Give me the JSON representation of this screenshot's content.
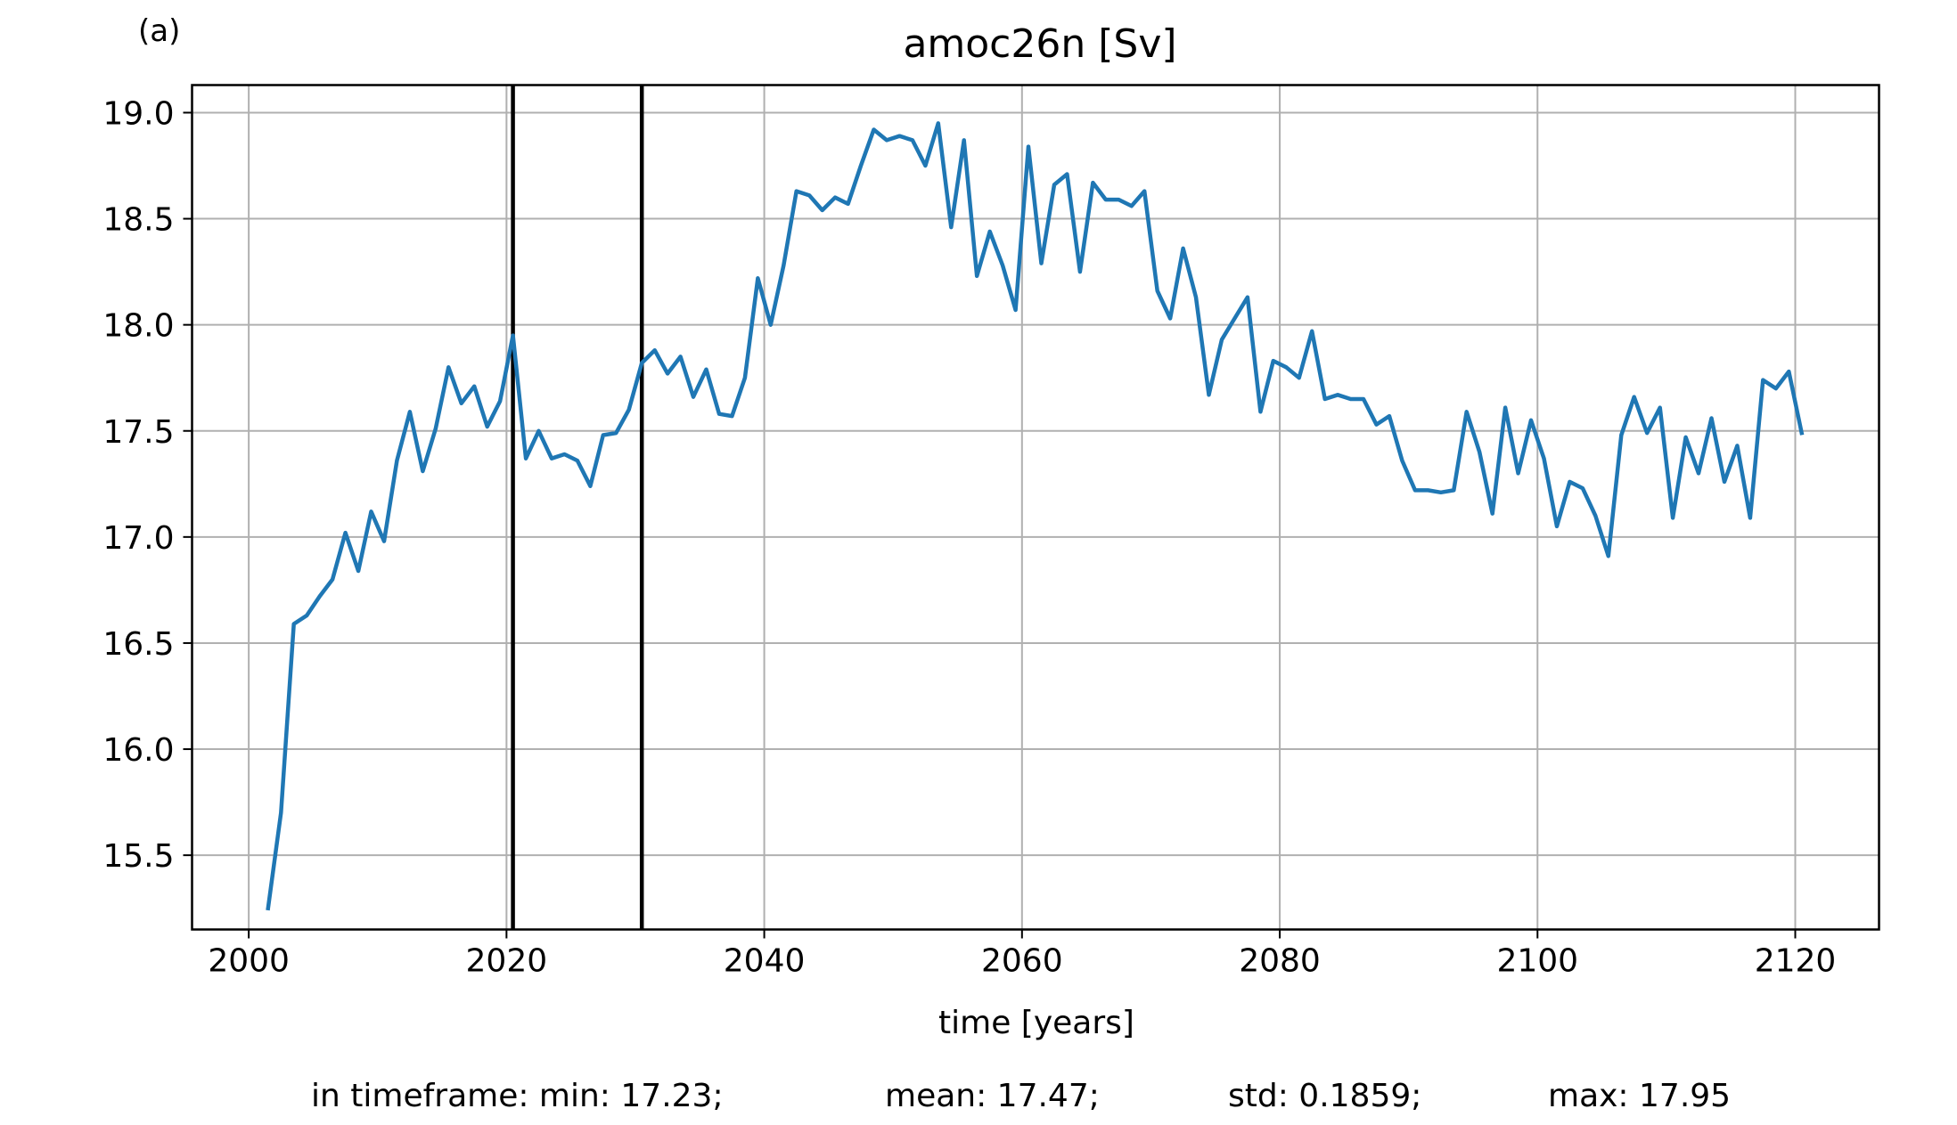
{
  "chart_data": {
    "type": "line",
    "panel_label": "(a)",
    "title": "amoc26n [Sv]",
    "xlabel": "time [years]",
    "ylabel": "",
    "xlim": [
      1995.6,
      2126.5
    ],
    "ylim": [
      15.15,
      19.13
    ],
    "xticks": [
      2000,
      2020,
      2040,
      2060,
      2080,
      2100,
      2120
    ],
    "xtick_labels": [
      "2000",
      "2020",
      "2040",
      "2060",
      "2080",
      "2100",
      "2120"
    ],
    "yticks": [
      15.5,
      16.0,
      16.5,
      17.0,
      17.5,
      18.0,
      18.5,
      19.0
    ],
    "ytick_labels": [
      "15.5",
      "16.0",
      "16.5",
      "17.0",
      "17.5",
      "18.0",
      "18.5",
      "19.0"
    ],
    "grid": true,
    "line_color": "#1f77b4",
    "vlines": [
      2020.5,
      2030.5
    ],
    "vline_color": "#000000",
    "series": [
      {
        "x": [
          2001.5,
          2002.5,
          2003.5,
          2004.5,
          2005.5,
          2006.5,
          2007.5,
          2008.5,
          2009.5,
          2010.5,
          2011.5,
          2012.5,
          2013.5,
          2014.5,
          2015.5,
          2016.5,
          2017.5,
          2018.5,
          2019.5,
          2020.5,
          2021.5,
          2022.5,
          2023.5,
          2024.5,
          2025.5,
          2026.5,
          2027.5,
          2028.5,
          2029.5,
          2030.5,
          2031.5,
          2032.5,
          2033.5,
          2034.5,
          2035.5,
          2036.5,
          2037.5,
          2038.5,
          2039.5,
          2040.5,
          2041.5,
          2042.5,
          2043.5,
          2044.5,
          2045.5,
          2046.5,
          2047.5,
          2048.5,
          2049.5,
          2050.5,
          2051.5,
          2052.5,
          2053.5,
          2054.5,
          2055.5,
          2056.5,
          2057.5,
          2058.5,
          2059.5,
          2060.5,
          2061.5,
          2062.5,
          2063.5,
          2064.5,
          2065.5,
          2066.5,
          2067.5,
          2068.5,
          2069.5,
          2070.5,
          2071.5,
          2072.5,
          2073.5,
          2074.5,
          2075.5,
          2076.5,
          2077.5,
          2078.5,
          2079.5,
          2080.5,
          2081.5,
          2082.5,
          2083.5,
          2084.5,
          2085.5,
          2086.5,
          2087.5,
          2088.5,
          2089.5,
          2090.5,
          2091.5,
          2092.5,
          2093.5,
          2094.5,
          2095.5,
          2096.5,
          2097.5,
          2098.5,
          2099.5,
          2100.5,
          2101.5,
          2102.5,
          2103.5,
          2104.5,
          2105.5,
          2106.5,
          2107.5,
          2108.5,
          2109.5,
          2110.5,
          2111.5,
          2112.5,
          2113.5,
          2114.5,
          2115.5,
          2116.5,
          2117.5,
          2118.5,
          2119.5,
          2120.5
        ],
        "y": [
          15.25,
          15.7,
          16.59,
          16.63,
          16.72,
          16.8,
          17.02,
          16.84,
          17.12,
          16.98,
          17.36,
          17.59,
          17.31,
          17.51,
          17.8,
          17.63,
          17.71,
          17.52,
          17.64,
          17.95,
          17.37,
          17.5,
          17.37,
          17.39,
          17.36,
          17.24,
          17.48,
          17.49,
          17.6,
          17.82,
          17.88,
          17.77,
          17.85,
          17.66,
          17.79,
          17.58,
          17.57,
          17.75,
          18.22,
          18.0,
          18.28,
          18.63,
          18.61,
          18.54,
          18.6,
          18.57,
          18.75,
          18.92,
          18.87,
          18.89,
          18.87,
          18.75,
          18.95,
          18.46,
          18.87,
          18.23,
          18.44,
          18.28,
          18.07,
          18.84,
          18.29,
          18.66,
          18.71,
          18.25,
          18.67,
          18.59,
          18.59,
          18.56,
          18.63,
          18.16,
          18.03,
          18.36,
          18.13,
          17.67,
          17.93,
          18.03,
          18.13,
          17.59,
          17.83,
          17.8,
          17.75,
          17.97,
          17.65,
          17.67,
          17.65,
          17.65,
          17.53,
          17.57,
          17.36,
          17.22,
          17.22,
          17.21,
          17.22,
          17.59,
          17.4,
          17.11,
          17.61,
          17.3,
          17.55,
          17.37,
          17.05,
          17.26,
          17.23,
          17.1,
          16.91,
          17.48,
          17.66,
          17.49,
          17.61,
          17.09,
          17.47,
          17.3,
          17.56,
          17.26,
          17.43,
          17.09,
          17.74,
          17.7,
          17.78,
          17.49
        ]
      }
    ],
    "footer_stats": [
      "in timeframe: min: 17.23;",
      "mean: 17.47;",
      "std: 0.1859;",
      "max: 17.95"
    ]
  }
}
